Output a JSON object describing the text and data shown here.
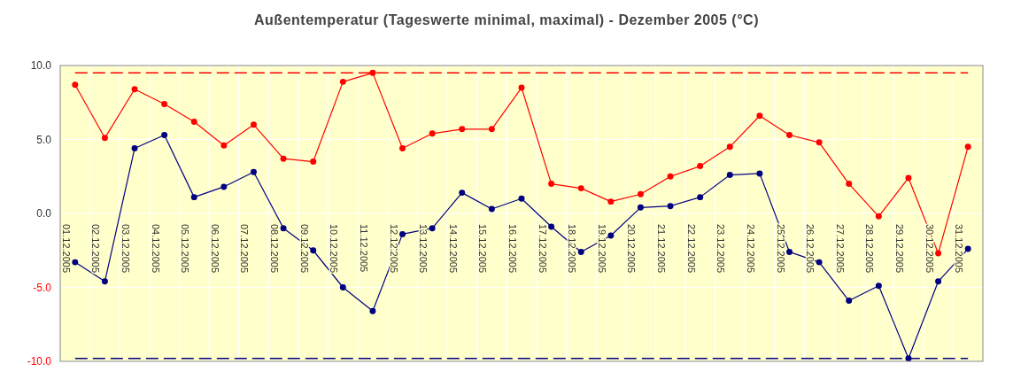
{
  "chart_data": {
    "type": "line",
    "title": "Außentemperatur (Tageswerte minimal, maximal) - Dezember 2005 (°C)",
    "categories": [
      "01.12.2005",
      "02.12.2005",
      "03.12.2005",
      "04.12.2005",
      "05.12.2005",
      "06.12.2005",
      "07.12.2005",
      "08.12.2005",
      "09.12.2005",
      "10.12.2005",
      "11.12.2005",
      "12.12.2005",
      "13.12.2005",
      "14.12.2005",
      "15.12.2005",
      "16.12.2005",
      "17.12.2005",
      "18.12.2005",
      "19.12.2005",
      "20.12.2005",
      "21.12.2005",
      "22.12.2005",
      "23.12.2005",
      "24.12.2005",
      "25.12.2005",
      "26.12.2005",
      "27.12.2005",
      "28.12.2005",
      "29.12.2005",
      "30.12.2005",
      "31.12.2005"
    ],
    "series": [
      {
        "color": "#ff0000",
        "values": [
          8.7,
          5.1,
          8.4,
          7.4,
          6.2,
          4.6,
          6.0,
          3.7,
          3.5,
          8.9,
          9.5,
          4.4,
          5.4,
          5.7,
          5.7,
          8.5,
          2.0,
          1.7,
          0.8,
          1.3,
          2.5,
          3.2,
          4.5,
          6.6,
          5.3,
          4.8,
          2.0,
          -0.2,
          2.4,
          -2.7,
          4.5
        ]
      },
      {
        "color": "#000080",
        "values": [
          -3.3,
          -4.6,
          4.4,
          5.3,
          1.1,
          1.8,
          2.8,
          -1.0,
          -2.5,
          -5.0,
          -6.6,
          -1.4,
          -1.0,
          1.4,
          0.3,
          1.0,
          -0.9,
          -2.6,
          -1.5,
          0.4,
          0.5,
          1.1,
          2.6,
          2.7,
          -2.6,
          -3.3,
          -5.9,
          -4.9,
          -9.8,
          -4.6,
          -2.4
        ]
      }
    ],
    "ylim": [
      -10,
      10
    ],
    "yticks": [
      {
        "value": -10,
        "label": "-10.0"
      },
      {
        "value": -5,
        "label": "-5.0"
      },
      {
        "value": 0,
        "label": "0.0"
      },
      {
        "value": 5,
        "label": "5.0"
      },
      {
        "value": 10,
        "label": "10.0"
      }
    ],
    "ref_lines": [
      {
        "axis": "y",
        "value": 9.5,
        "label": null,
        "color": "#ff0000",
        "line_style": "dashed"
      },
      {
        "axis": "y",
        "value": -9.8,
        "label": null,
        "color": "#000080",
        "line_style": "dashed"
      }
    ],
    "grid": true,
    "marker": "circle",
    "line_style": "solid"
  }
}
